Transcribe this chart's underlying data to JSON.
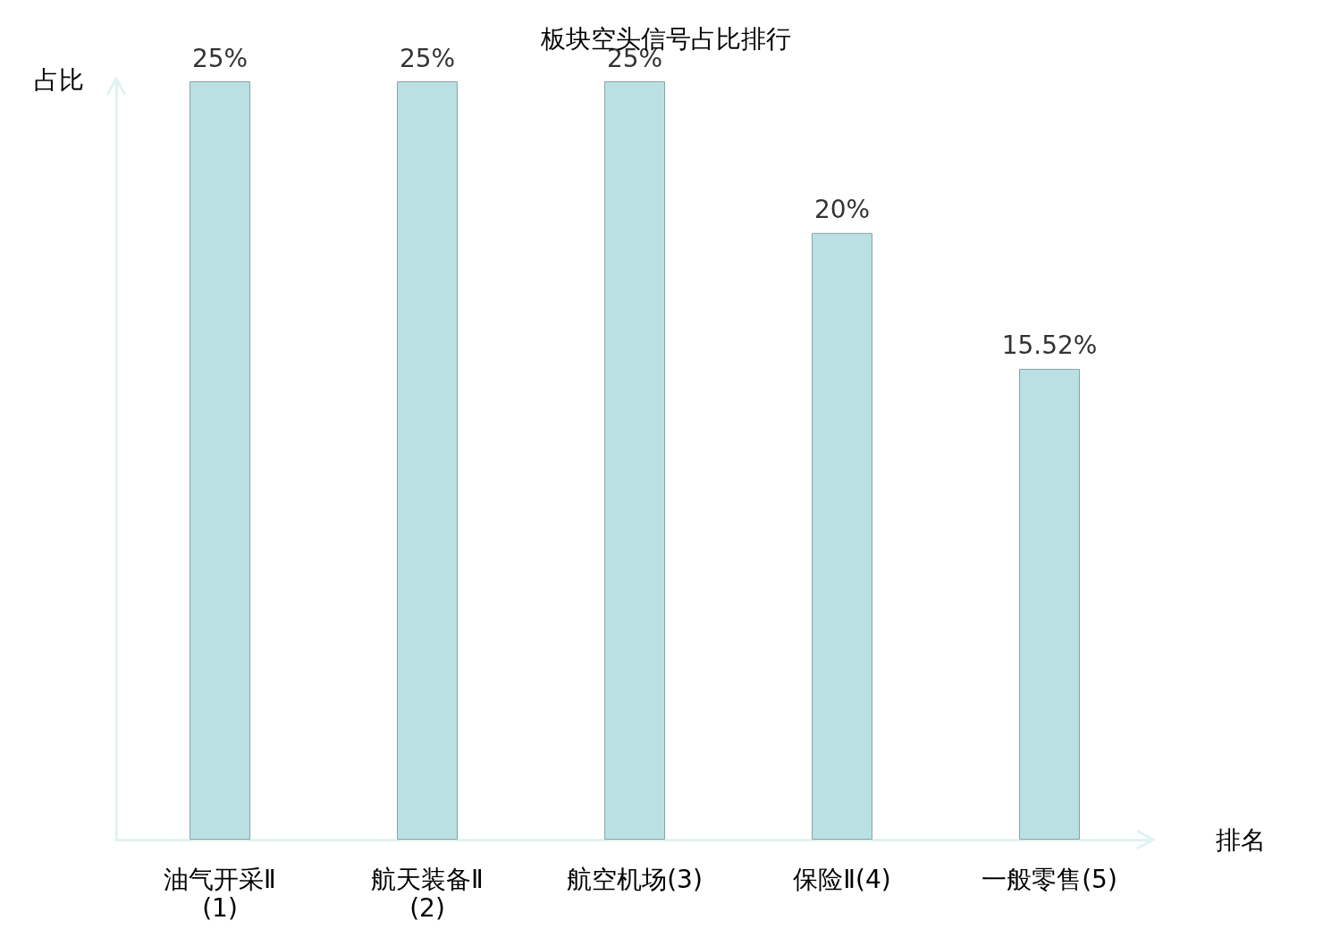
{
  "chart_data": {
    "type": "bar",
    "title": "板块空头信号占比排行",
    "xlabel": "排名",
    "ylabel": "占比",
    "categories": [
      "油气开采Ⅱ(1)",
      "航天装备Ⅱ(2)",
      "航空机场(3)",
      "保险Ⅱ(4)",
      "一般零售(5)"
    ],
    "values": [
      25,
      25,
      25,
      20,
      15.52
    ],
    "value_labels": [
      "25%",
      "25%",
      "25%",
      "20%",
      "15.52%"
    ],
    "color": "#bbe0e3",
    "grid": false
  }
}
